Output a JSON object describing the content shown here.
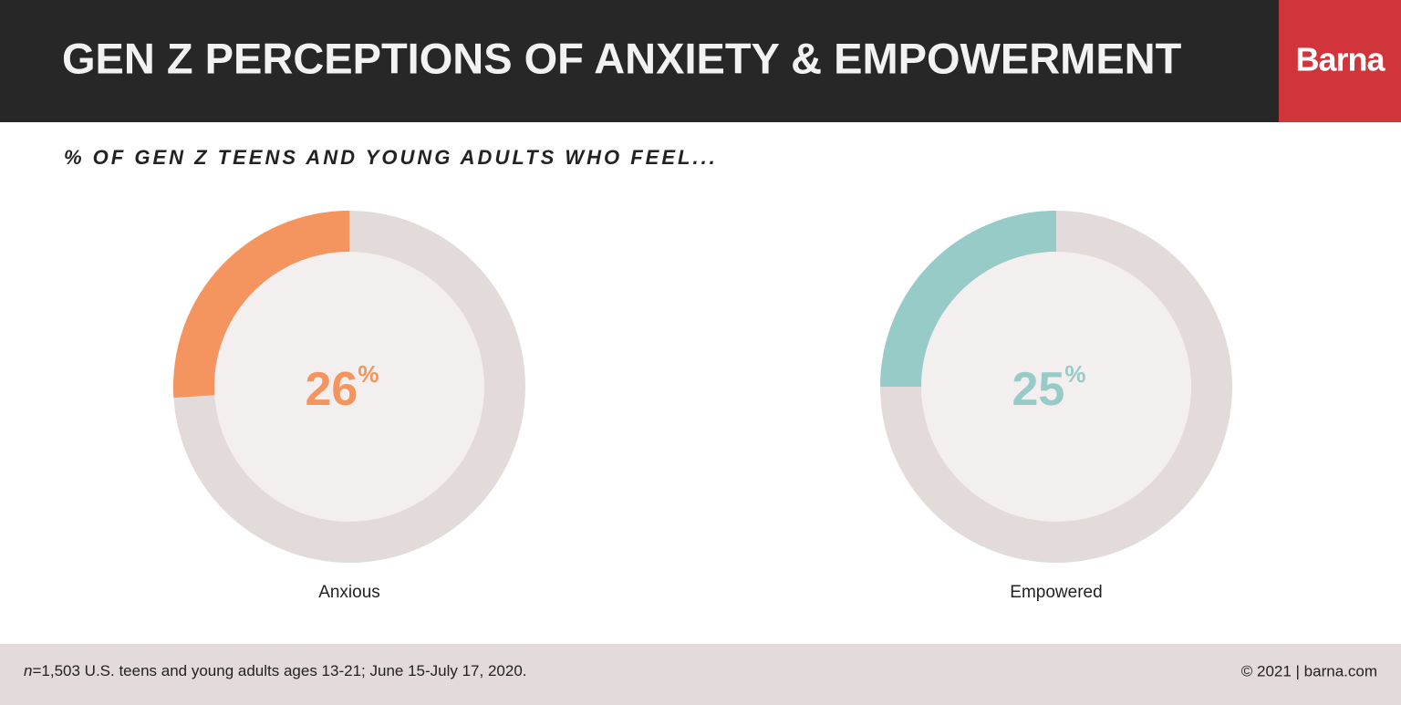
{
  "header": {
    "title": "GEN Z PERCEPTIONS OF ANXIETY & EMPOWERMENT",
    "brand": "Barna"
  },
  "subtitle": "% OF GEN Z TEENS AND YOUNG ADULTS WHO FEEL...",
  "chart_data": [
    {
      "type": "donut",
      "categories": [
        "Anxious"
      ],
      "values": [
        26
      ],
      "unit": "%",
      "color": "#f4955f"
    },
    {
      "type": "donut",
      "categories": [
        "Empowered"
      ],
      "values": [
        25
      ],
      "unit": "%",
      "color": "#97cbc8"
    }
  ],
  "footer": {
    "note": [
      "n",
      "=1,503 U.S. teens and young adults ages 13-21; June 15-July 17, 2020."
    ],
    "credit": "© 2021 | barna.com"
  }
}
